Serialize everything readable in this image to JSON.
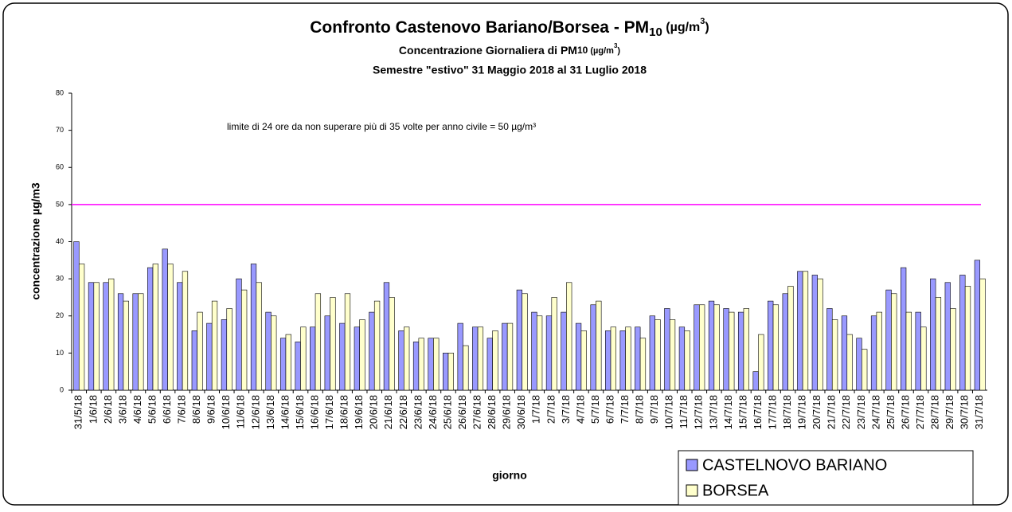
{
  "chart_data": {
    "type": "bar",
    "title": [
      "Confronto Castenovo Bariano/Borsea - PM",
      "10",
      " (µg/m",
      "3",
      ")"
    ],
    "subtitle": [
      "Concentrazione Giornaliera di PM",
      "10",
      " (µg/m",
      "3",
      ")"
    ],
    "subtitle2": "Semestre \"estivo\" 31 Maggio 2018 al 31 Luglio 2018",
    "annotation": "limite di 24 ore da non superare più di 35 volte per anno civile = 50 µg/m³",
    "xlabel": "giorno",
    "ylabel": "concentrazione µg/m3",
    "limit_line": 50,
    "limit_color": "#ff00ff",
    "categories": [
      "31/5/18",
      "1/6/18",
      "2/6/18",
      "3/6/18",
      "4/6/18",
      "5/6/18",
      "6/6/18",
      "7/6/18",
      "8/6/18",
      "9/6/18",
      "10/6/18",
      "11/6/18",
      "12/6/18",
      "13/6/18",
      "14/6/18",
      "15/6/18",
      "16/6/18",
      "17/6/18",
      "18/6/18",
      "19/6/18",
      "20/6/18",
      "21/6/18",
      "22/6/18",
      "23/6/18",
      "24/6/18",
      "25/6/18",
      "26/6/18",
      "27/6/18",
      "28/6/18",
      "29/6/18",
      "30/6/18",
      "1/7/18",
      "2/7/18",
      "3/7/18",
      "4/7/18",
      "5/7/18",
      "6/7/18",
      "7/7/18",
      "8/7/18",
      "9/7/18",
      "10/7/18",
      "11/7/18",
      "12/7/18",
      "13/7/18",
      "14/7/18",
      "15/7/18",
      "16/7/18",
      "17/7/18",
      "18/7/18",
      "19/7/18",
      "20/7/18",
      "21/7/18",
      "22/7/18",
      "23/7/18",
      "24/7/18",
      "25/7/18",
      "26/7/18",
      "27/7/18",
      "28/7/18",
      "29/7/18",
      "30/7/18",
      "31/7/18"
    ],
    "series": [
      {
        "name": "CASTELNOVO BARIANO",
        "color": "#9999ff",
        "values": [
          40,
          29,
          29,
          26,
          26,
          33,
          38,
          29,
          16,
          18,
          19,
          30,
          34,
          21,
          14,
          13,
          17,
          20,
          18,
          17,
          21,
          29,
          16,
          13,
          14,
          10,
          18,
          17,
          14,
          18,
          27,
          21,
          20,
          21,
          18,
          23,
          16,
          16,
          17,
          20,
          22,
          17,
          23,
          24,
          22,
          21,
          5,
          24,
          26,
          32,
          31,
          22,
          20,
          14,
          20,
          27,
          33,
          21,
          30,
          29,
          31,
          35
        ]
      },
      {
        "name": "BORSEA",
        "color": "#ffffcc",
        "values": [
          34,
          29,
          30,
          24,
          26,
          34,
          34,
          32,
          21,
          24,
          22,
          27,
          29,
          20,
          15,
          17,
          26,
          25,
          26,
          19,
          24,
          25,
          17,
          14,
          14,
          10,
          12,
          17,
          16,
          18,
          26,
          20,
          25,
          29,
          16,
          24,
          17,
          17,
          14,
          19,
          19,
          16,
          23,
          23,
          21,
          22,
          15,
          23,
          28,
          32,
          30,
          19,
          15,
          11,
          21,
          26,
          21,
          17,
          25,
          22,
          28,
          30
        ]
      }
    ],
    "ylim": [
      0,
      80
    ],
    "yticks": [
      0,
      10,
      20,
      30,
      40,
      50,
      60,
      70,
      80
    ],
    "legend": "lower right"
  }
}
